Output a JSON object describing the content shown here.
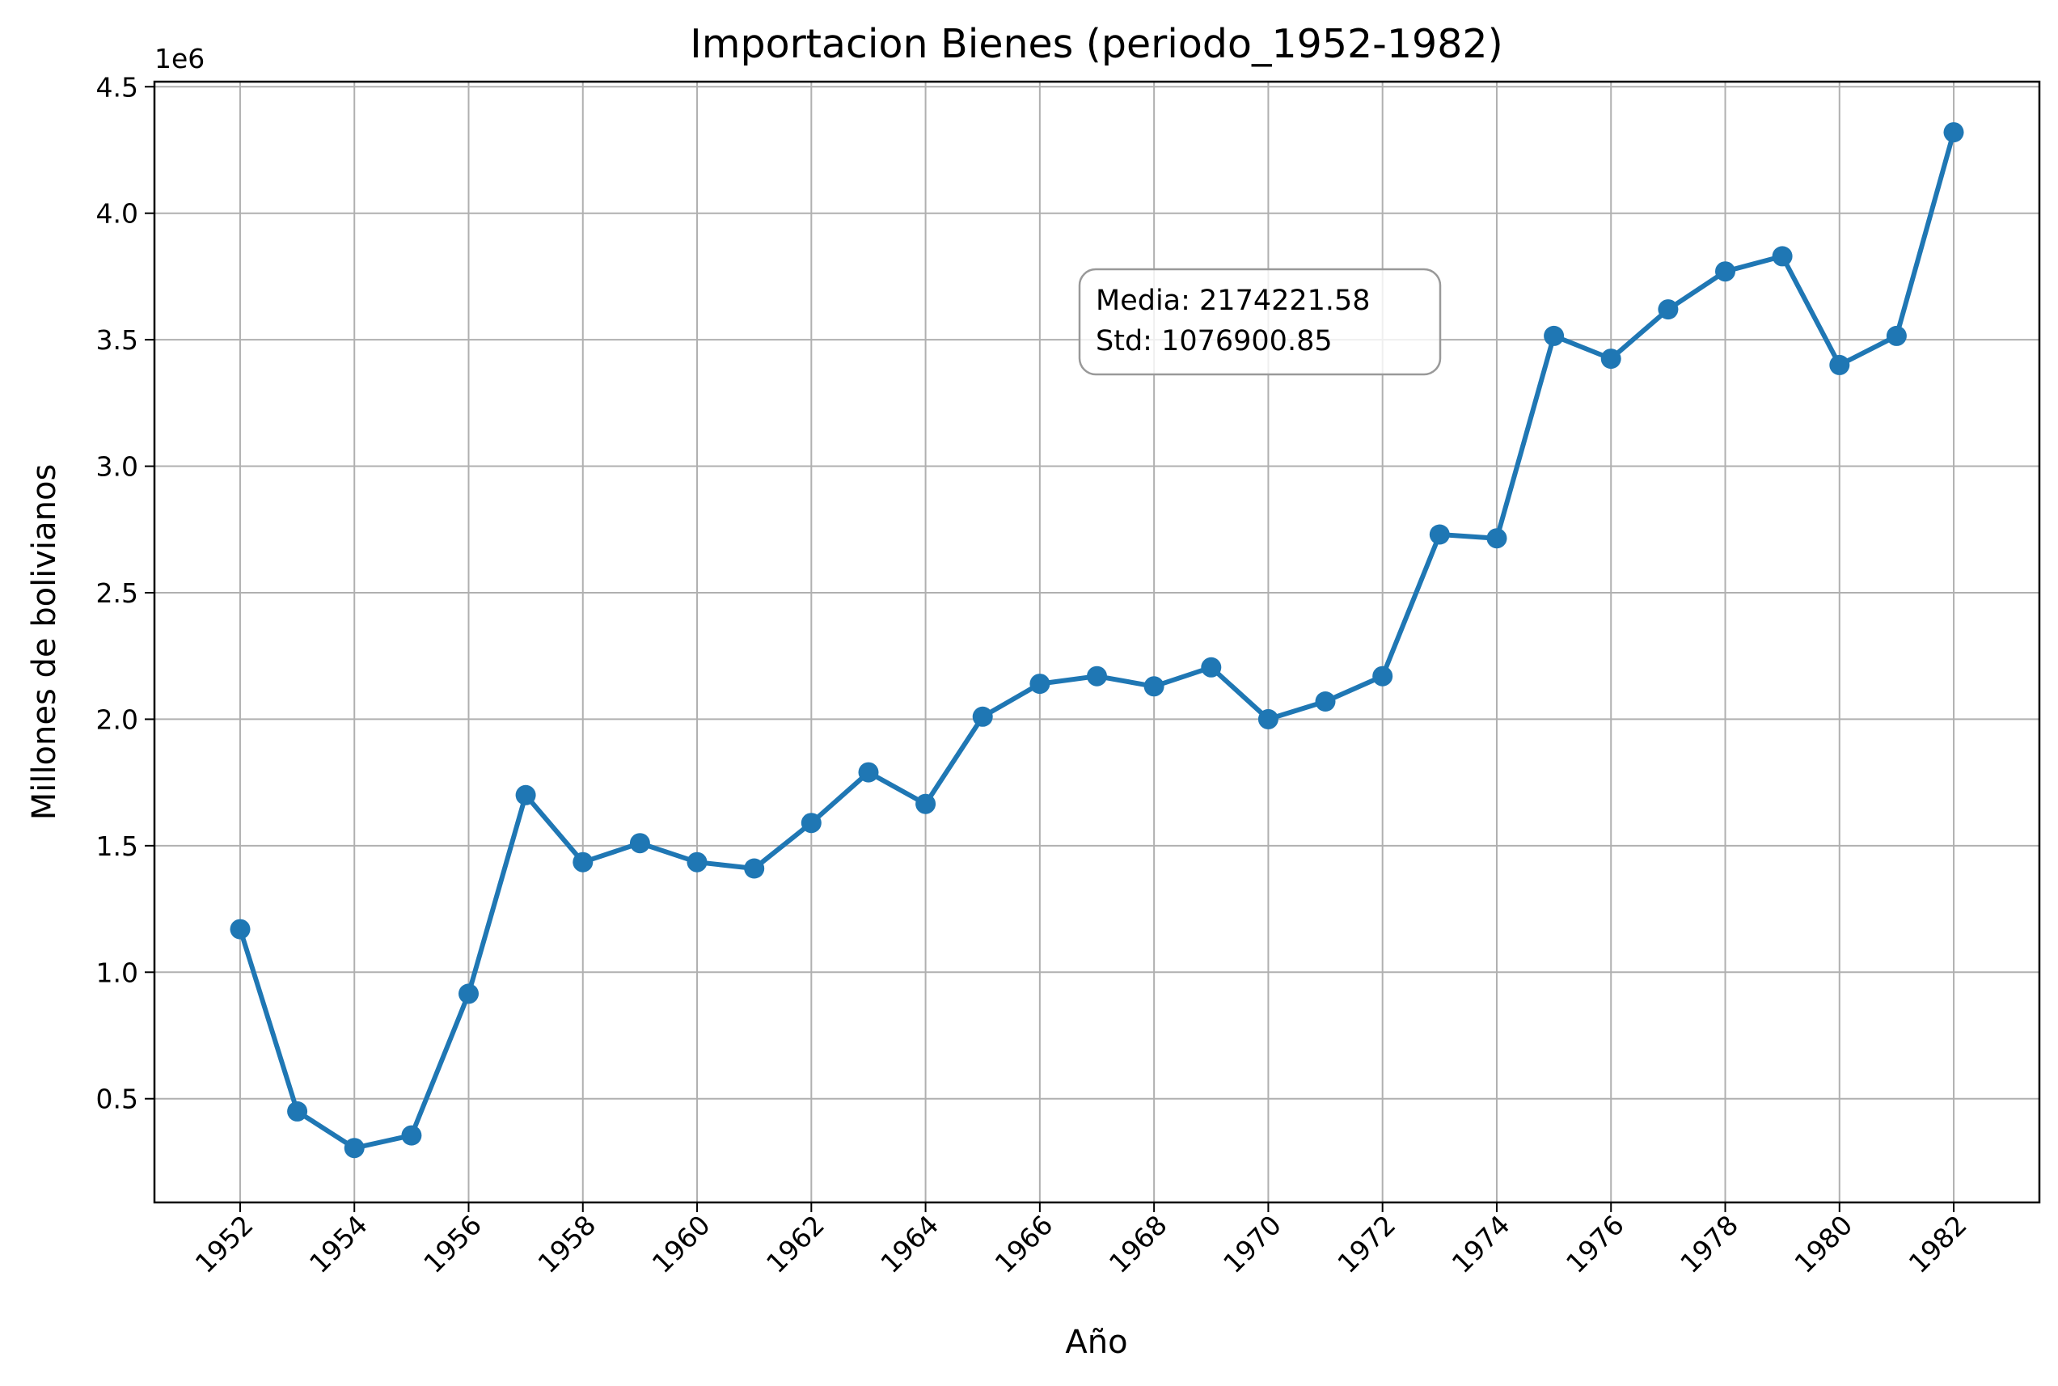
{
  "chart_data": {
    "type": "line",
    "title": "Importacion Bienes (periodo_1952-1982)",
    "xlabel": "Año",
    "ylabel": "Millones de bolivianos",
    "y_offset_label": "1e6",
    "x": [
      1952,
      1953,
      1954,
      1955,
      1956,
      1957,
      1958,
      1959,
      1960,
      1961,
      1962,
      1963,
      1964,
      1965,
      1966,
      1967,
      1968,
      1969,
      1970,
      1971,
      1972,
      1973,
      1974,
      1975,
      1976,
      1977,
      1978,
      1979,
      1980,
      1981,
      1982
    ],
    "series": [
      {
        "values": [
          1170000,
          450000,
          305000,
          355000,
          915000,
          1700000,
          1435000,
          1510000,
          1435000,
          1410000,
          1590000,
          1790000,
          1665000,
          2010000,
          2140000,
          2170000,
          2130000,
          2205000,
          2000000,
          2070000,
          2170000,
          2730000,
          2715000,
          3515000,
          3425000,
          3620000,
          3770000,
          3830000,
          3400000,
          3515000,
          4320000
        ],
        "color": "#1f77b4"
      }
    ],
    "xlim": [
      1950.5,
      1983.5
    ],
    "ylim": [
      90000,
      4520000
    ],
    "x_ticks": [
      "1952",
      "1954",
      "1956",
      "1958",
      "1960",
      "1962",
      "1964",
      "1966",
      "1968",
      "1970",
      "1972",
      "1974",
      "1976",
      "1978",
      "1980",
      "1982"
    ],
    "y_ticks": [
      "0.5",
      "1.0",
      "1.5",
      "2.0",
      "2.5",
      "3.0",
      "3.5",
      "4.0",
      "4.5"
    ],
    "grid": true,
    "annotation": {
      "line1": "Media: 2174221.58",
      "line2": "Std: 1076900.85"
    }
  }
}
